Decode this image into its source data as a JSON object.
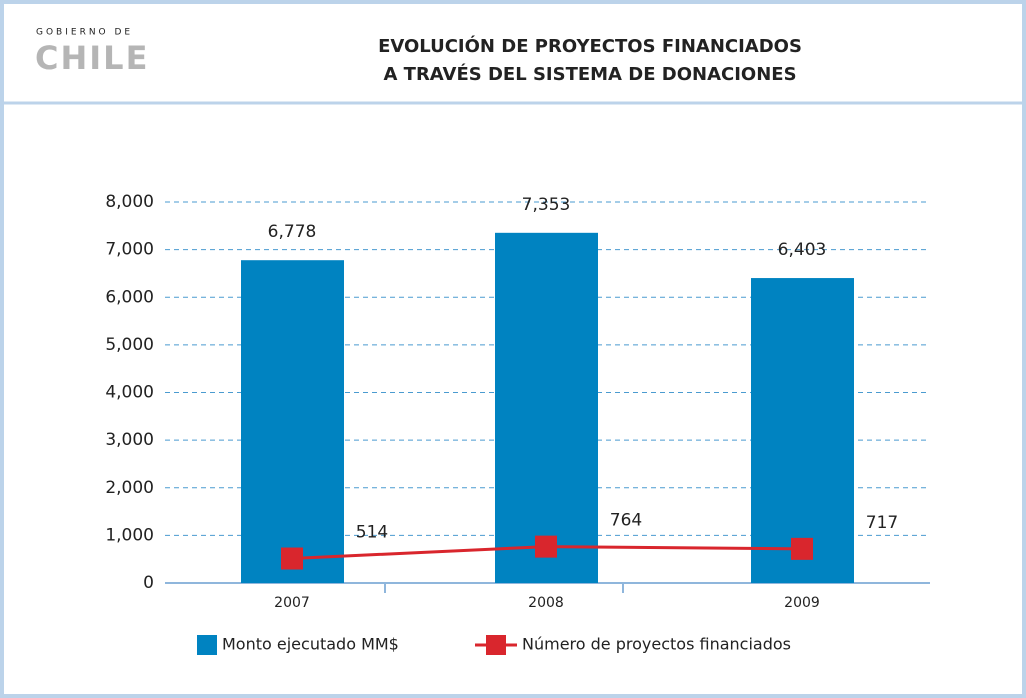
{
  "logo": {
    "top": "GOBIERNO DE",
    "main": "CHILE"
  },
  "chart_data": {
    "type": "bar",
    "title": [
      "EVOLUCIÓN DE PROYECTOS FINANCIADOS",
      "A TRAVÉS DEL SISTEMA DE DONACIONES"
    ],
    "categories": [
      "2007",
      "2008",
      "2009"
    ],
    "series": [
      {
        "name": "Monto ejecutado MM$",
        "type": "bar",
        "color": "#0083c1",
        "values": [
          6778,
          7353,
          6403
        ],
        "value_labels": [
          "6,778",
          "7,353",
          "6,403"
        ]
      },
      {
        "name": "Número de proyectos financiados",
        "type": "line",
        "color": "#d9262d",
        "values": [
          514,
          764,
          717
        ]
      }
    ],
    "ylim": [
      0,
      8000
    ],
    "yticks": [
      0,
      {
        "value": 1000,
        "label": "1,000"
      },
      {
        "value": 2000,
        "label": "2,000"
      },
      {
        "value": 3000,
        "label": "3,000"
      },
      {
        "value": 4000,
        "label": "4,000"
      },
      {
        "value": 5000,
        "label": "5,000"
      },
      {
        "value": 6000,
        "label": "6,000"
      },
      {
        "value": 7000,
        "label": "7,000"
      },
      {
        "value": 8000,
        "label": "8,000"
      }
    ],
    "grid": true,
    "legend": "bottom"
  }
}
